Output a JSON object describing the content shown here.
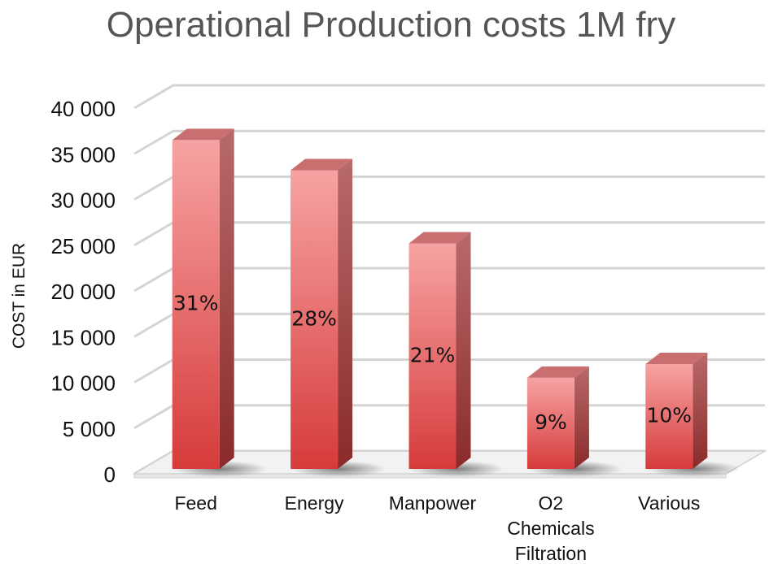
{
  "chart_data": {
    "type": "bar",
    "title": "Operational Production costs 1M fry",
    "xlabel": "",
    "ylabel": "COST in EUR",
    "categories": [
      "Feed",
      "Energy",
      "Manpower",
      "O2 Chemicals Filtration",
      "Various"
    ],
    "category_lines": [
      [
        "Feed"
      ],
      [
        "Energy"
      ],
      [
        "Manpower"
      ],
      [
        "O2",
        "Chemicals",
        "Filtration"
      ],
      [
        "Various"
      ]
    ],
    "values": [
      36500,
      33200,
      25200,
      10500,
      12000
    ],
    "data_labels": [
      "31%",
      "28%",
      "21%",
      "9%",
      "10%"
    ],
    "ylim": [
      0,
      40000
    ],
    "yticks": [
      0,
      5000,
      10000,
      15000,
      20000,
      25000,
      30000,
      35000,
      40000
    ],
    "ytick_labels": [
      "0",
      "5 000",
      "10 000",
      "15 000",
      "20 000",
      "25 000",
      "30 000",
      "35 000",
      "40 000"
    ],
    "grid": true,
    "legend": "none",
    "style": "3d-column",
    "colors": {
      "bar_top": "#f7a3a3",
      "bar_bottom": "#d63b3b",
      "bar_side_top": "#b86a6a",
      "bar_side_bottom": "#8a2a2a",
      "bar_cap": "#c96f6f",
      "grid": "#d4d4d4",
      "title": "#555555"
    }
  }
}
